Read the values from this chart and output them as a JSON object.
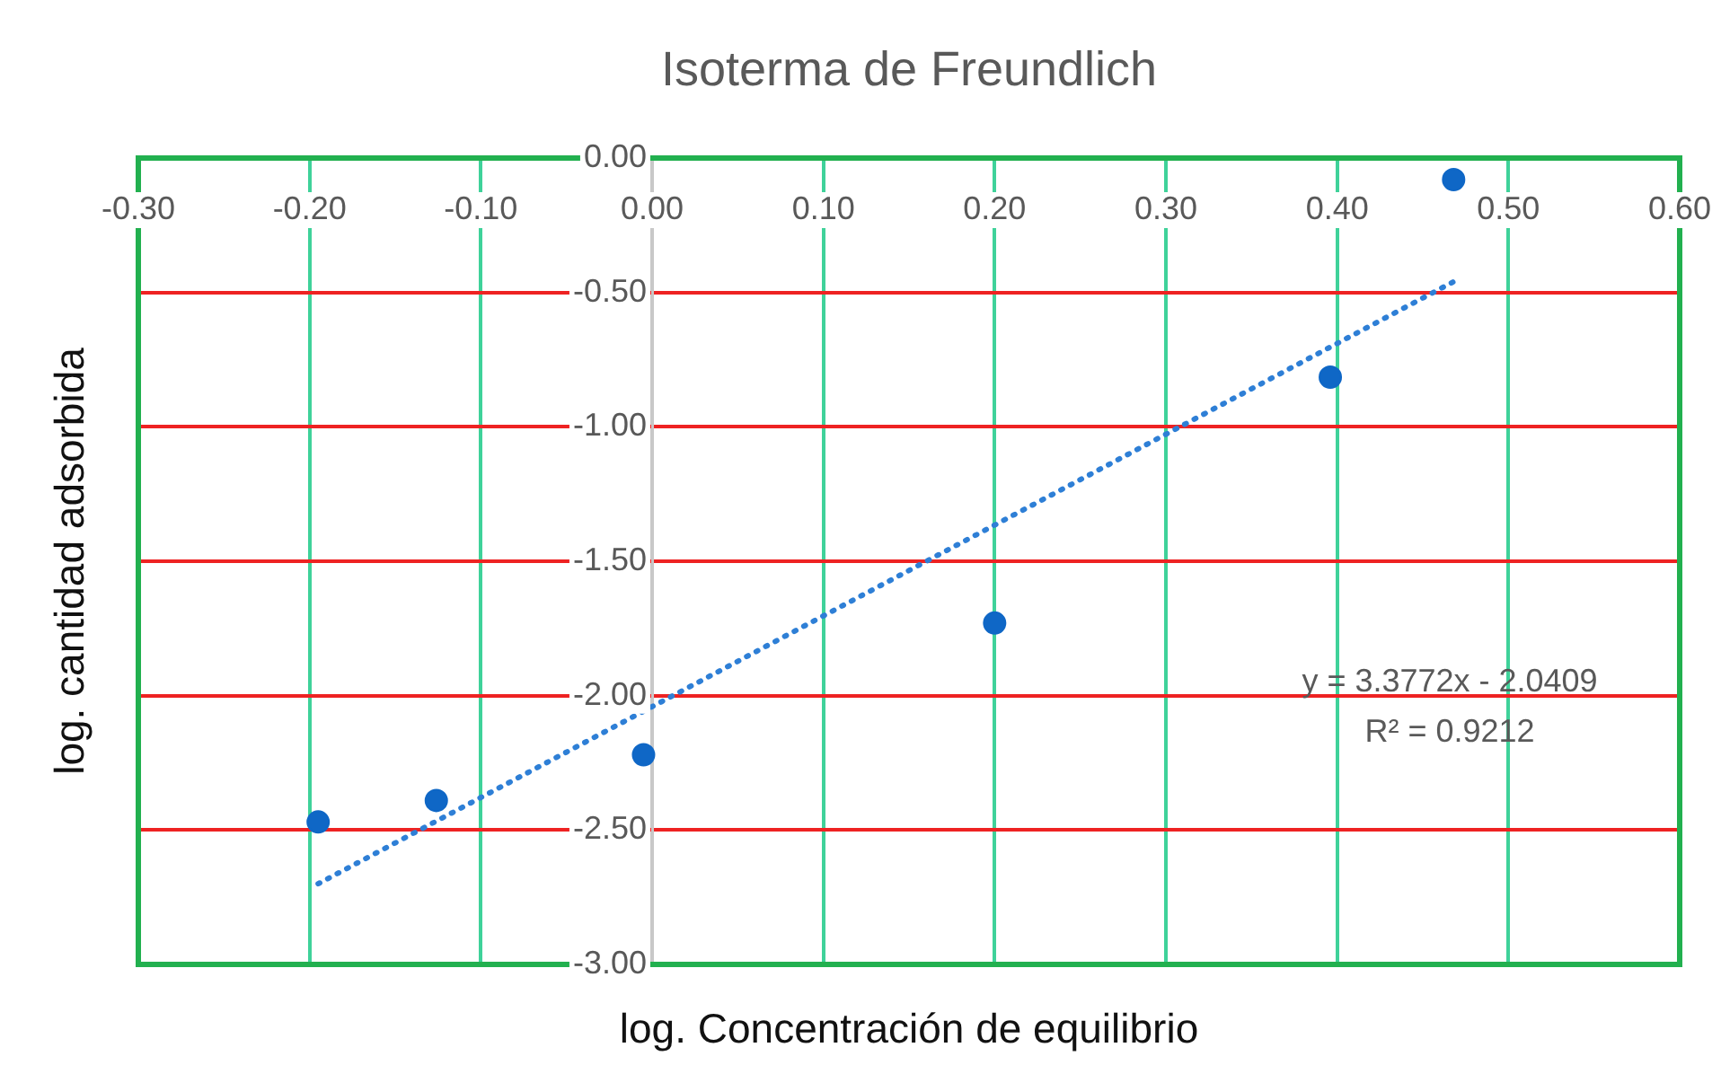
{
  "chart_data": {
    "type": "scatter",
    "title": "Isoterma de Freundlich",
    "xlabel": "log. Concentración de equilibrio",
    "ylabel": "log. cantidad adsorbida",
    "xlim": [
      -0.3,
      0.6
    ],
    "ylim": [
      -3,
      0
    ],
    "xticks": [
      {
        "value": -0.3,
        "label": "-0.30"
      },
      {
        "value": -0.2,
        "label": "-0.20"
      },
      {
        "value": -0.1,
        "label": "-0.10"
      },
      {
        "value": 0,
        "label": "0.00"
      },
      {
        "value": 0.1,
        "label": "0.10"
      },
      {
        "value": 0.2,
        "label": "0.20"
      },
      {
        "value": 0.3,
        "label": "0.30"
      },
      {
        "value": 0.4,
        "label": "0.40"
      },
      {
        "value": 0.5,
        "label": "0.50"
      },
      {
        "value": 0.6,
        "label": "0.60"
      }
    ],
    "yticks": [
      {
        "value": 0,
        "label": "0.00"
      },
      {
        "value": -0.5,
        "label": "-0.50"
      },
      {
        "value": -1,
        "label": "-1.00"
      },
      {
        "value": -1.5,
        "label": "-1.50"
      },
      {
        "value": -2,
        "label": "-2.00"
      },
      {
        "value": -2.5,
        "label": "-2.50"
      },
      {
        "value": -3,
        "label": "-3.00"
      }
    ],
    "grid": true,
    "legend": false,
    "series": [
      {
        "type": "scatter",
        "color": "#0f67c6",
        "marker": "circle",
        "x": [
          -0.195,
          -0.126,
          -0.005,
          0.2,
          0.396,
          0.468
        ],
        "values": [
          -2.47,
          -2.39,
          -2.22,
          -1.73,
          -0.815,
          -0.08
        ]
      },
      {
        "type": "line",
        "color": "#2e7fd6",
        "marker": "none",
        "line_style": "dotted",
        "x": [
          -0.195,
          0.468
        ],
        "values": [
          -2.7,
          -0.46
        ]
      }
    ],
    "annotations": [
      "y = 3.3772x - 2.0409",
      "R² = 0.9212"
    ]
  }
}
